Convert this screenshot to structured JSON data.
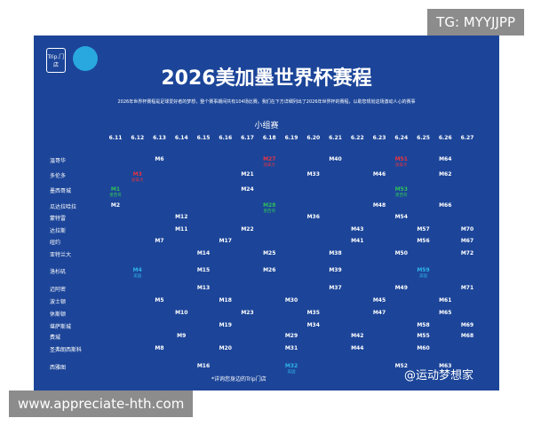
{
  "watermark_top": "TG: MYYJJPP",
  "watermark_bottom": "www.appreciate-hth.com",
  "watermark_author": "@运动梦想家",
  "poster": {
    "logo": "Trip.门店",
    "title": "2026美加墨世界杯赛程",
    "subtitle": "2026年世界杯赛程是足球爱好者的梦想，整个赛事期间共有104场比赛。我们在下方详细列出了2026年世界杯的赛程，以助您规划这场激动人心的赛事",
    "stage": "小组赛",
    "footer": "*详询您身边的Trip门店",
    "hosts": [
      {
        "name": "加拿大",
        "color": "#e8343f"
      },
      {
        "name": "墨西哥",
        "color": "#2fbf5a"
      },
      {
        "name": "美国",
        "color": "#2fb4e8"
      }
    ],
    "dates": [
      "6.11",
      "6.12",
      "6.13",
      "6.14",
      "6.15",
      "6.16",
      "6.17",
      "6.18",
      "6.19",
      "6.20",
      "6.21",
      "6.22",
      "6.23",
      "6.24",
      "6.25",
      "6.26",
      "6.27"
    ],
    "rows": [
      {
        "city": "温哥华",
        "cells": [
          null,
          null,
          {
            "code": "M6"
          },
          null,
          null,
          null,
          null,
          {
            "code": "M27",
            "host": 0
          },
          null,
          null,
          {
            "code": "M40"
          },
          null,
          null,
          {
            "code": "M51",
            "host": 0
          },
          null,
          {
            "code": "M64"
          },
          null
        ]
      },
      {
        "city": "多伦多",
        "cells": [
          null,
          {
            "code": "M3",
            "host": 0
          },
          null,
          null,
          null,
          null,
          {
            "code": "M21"
          },
          null,
          null,
          {
            "code": "M33"
          },
          null,
          null,
          {
            "code": "M46"
          },
          null,
          null,
          {
            "code": "M62"
          },
          null
        ]
      },
      {
        "city": "墨西哥城",
        "cells": [
          {
            "code": "M1",
            "host": 1
          },
          null,
          null,
          null,
          null,
          null,
          {
            "code": "M24"
          },
          null,
          null,
          null,
          null,
          null,
          null,
          {
            "code": "M53",
            "host": 1
          },
          null,
          null,
          null
        ]
      },
      {
        "city": "瓜达拉哈拉",
        "cells": [
          {
            "code": "M2"
          },
          null,
          null,
          null,
          null,
          null,
          null,
          {
            "code": "M28",
            "host": 1
          },
          null,
          null,
          null,
          null,
          {
            "code": "M48"
          },
          null,
          null,
          {
            "code": "M66"
          },
          null
        ]
      },
      {
        "city": "蒙特雷",
        "cells": [
          null,
          null,
          null,
          {
            "code": "M12"
          },
          null,
          null,
          null,
          null,
          null,
          {
            "code": "M36"
          },
          null,
          null,
          null,
          {
            "code": "M54"
          },
          null,
          null,
          null
        ]
      },
      {
        "city": "达拉斯",
        "cells": [
          null,
          null,
          null,
          {
            "code": "M11"
          },
          null,
          null,
          {
            "code": "M22"
          },
          null,
          null,
          null,
          null,
          {
            "code": "M43"
          },
          null,
          null,
          {
            "code": "M57"
          },
          null,
          {
            "code": "M70"
          }
        ]
      },
      {
        "city": "纽约",
        "cells": [
          null,
          null,
          {
            "code": "M7"
          },
          null,
          null,
          {
            "code": "M17"
          },
          null,
          null,
          null,
          null,
          null,
          {
            "code": "M41"
          },
          null,
          null,
          {
            "code": "M56"
          },
          null,
          {
            "code": "M67"
          }
        ]
      },
      {
        "city": "亚特兰大",
        "cells": [
          null,
          null,
          null,
          null,
          {
            "code": "M14"
          },
          null,
          null,
          {
            "code": "M25"
          },
          null,
          null,
          {
            "code": "M38"
          },
          null,
          null,
          {
            "code": "M50"
          },
          null,
          null,
          {
            "code": "M72"
          }
        ]
      },
      {
        "city": "洛杉矶",
        "cells": [
          null,
          {
            "code": "M4",
            "host": 2
          },
          null,
          null,
          {
            "code": "M15"
          },
          null,
          null,
          {
            "code": "M26"
          },
          null,
          null,
          {
            "code": "M39"
          },
          null,
          null,
          null,
          {
            "code": "M59",
            "host": 2
          },
          null,
          null
        ]
      },
      {
        "city": "迈阿密",
        "cells": [
          null,
          null,
          null,
          null,
          {
            "code": "M13"
          },
          null,
          null,
          null,
          null,
          null,
          {
            "code": "M37"
          },
          null,
          null,
          {
            "code": "M49"
          },
          null,
          null,
          {
            "code": "M71"
          }
        ]
      },
      {
        "city": "波士顿",
        "cells": [
          null,
          null,
          {
            "code": "M5"
          },
          null,
          null,
          {
            "code": "M18"
          },
          null,
          null,
          {
            "code": "M30"
          },
          null,
          null,
          null,
          {
            "code": "M45"
          },
          null,
          null,
          {
            "code": "M61"
          },
          null
        ]
      },
      {
        "city": "休斯顿",
        "cells": [
          null,
          null,
          null,
          {
            "code": "M10"
          },
          null,
          null,
          {
            "code": "M23"
          },
          null,
          null,
          {
            "code": "M35"
          },
          null,
          null,
          {
            "code": "M47"
          },
          null,
          null,
          {
            "code": "M65"
          },
          null
        ]
      },
      {
        "city": "堪萨斯城",
        "cells": [
          null,
          null,
          null,
          null,
          null,
          {
            "code": "M19"
          },
          null,
          null,
          null,
          {
            "code": "M34"
          },
          null,
          null,
          null,
          null,
          {
            "code": "M58"
          },
          null,
          {
            "code": "M69"
          }
        ]
      },
      {
        "city": "费城",
        "cells": [
          null,
          null,
          null,
          {
            "code": "M9"
          },
          null,
          null,
          null,
          null,
          {
            "code": "M29"
          },
          null,
          null,
          {
            "code": "M42"
          },
          null,
          null,
          {
            "code": "M55"
          },
          null,
          {
            "code": "M68"
          }
        ]
      },
      {
        "city": "圣弗朗西斯科",
        "cells": [
          null,
          null,
          {
            "code": "M8"
          },
          null,
          null,
          {
            "code": "M20"
          },
          null,
          null,
          {
            "code": "M31"
          },
          null,
          null,
          {
            "code": "M44"
          },
          null,
          null,
          {
            "code": "M60"
          },
          null,
          null
        ]
      },
      {
        "city": "西雅图",
        "cells": [
          null,
          null,
          null,
          null,
          {
            "code": "M16"
          },
          null,
          null,
          null,
          {
            "code": "M32",
            "host": 2
          },
          null,
          null,
          null,
          null,
          {
            "code": "M52"
          },
          null,
          {
            "code": "M63"
          },
          null
        ]
      }
    ]
  }
}
